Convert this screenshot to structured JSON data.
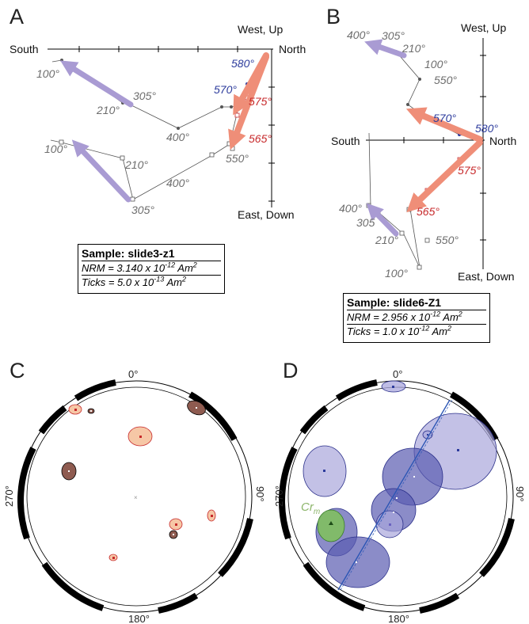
{
  "panels": {
    "A": {
      "letter": "A",
      "axis_left": "South",
      "axis_right": "North",
      "axis_top": "West, Up",
      "axis_bottom": "East, Down",
      "labels_gray": [
        "100°",
        "210°",
        "305°",
        "400°",
        "100°",
        "210°",
        "400°",
        "305°",
        "550°"
      ],
      "labels_blue": [
        "580°",
        "570°"
      ],
      "labels_red": [
        "575°",
        "565°"
      ],
      "box": {
        "title": "Sample: slide3-z1",
        "nrm_prefix": "NRM = 3.140 x 10",
        "nrm_exp": "-12",
        "nrm_unit": " Am",
        "nrm_unit_exp": "2",
        "ticks_prefix": "Ticks = 5.0 x 10",
        "ticks_exp": "-13",
        "ticks_unit": " Am",
        "ticks_unit_exp": "2"
      }
    },
    "B": {
      "letter": "B",
      "axis_left": "South",
      "axis_right": "North",
      "axis_top": "West, Up",
      "axis_bottom": "East, Down",
      "labels_gray": [
        "400°",
        "305°",
        "210°",
        "100°",
        "550°",
        "400°",
        "305",
        "210°",
        "550°",
        "100°"
      ],
      "labels_blue": [
        "570°",
        "580°"
      ],
      "labels_red": [
        "575°",
        "565°"
      ],
      "box": {
        "title": "Sample: slide6-Z1",
        "nrm_prefix": "NRM = 2.956 x 10",
        "nrm_exp": "-12",
        "nrm_unit": " Am",
        "nrm_unit_exp": "2",
        "ticks_prefix": "Ticks = 1.0 x 10",
        "ticks_exp": "-12",
        "ticks_unit": " Am",
        "ticks_unit_exp": "2"
      }
    },
    "C": {
      "letter": "C",
      "deg_top": "0°",
      "deg_left": "270°",
      "deg_right": "90°",
      "deg_bottom": "180°"
    },
    "D": {
      "letter": "D",
      "deg_top": "0°",
      "deg_left": "270°",
      "deg_right": "90°",
      "deg_bottom": "180°",
      "cr_label": "Cr",
      "cr_sub": "m"
    }
  },
  "colors": {
    "gray_text": "#6d6d6d",
    "blue_text": "#2c3b9c",
    "red_text": "#c7292b",
    "purple_arrow": "#a99bd3",
    "salmon_arrow": "#ef8e78",
    "ellipse_orange": "#f6c7a6",
    "ellipse_brown": "#8e5b50",
    "ellipse_purple": "#a9a7dc",
    "ellipse_green": "#7fbf5f",
    "gc_blue": "#2c56b5"
  }
}
